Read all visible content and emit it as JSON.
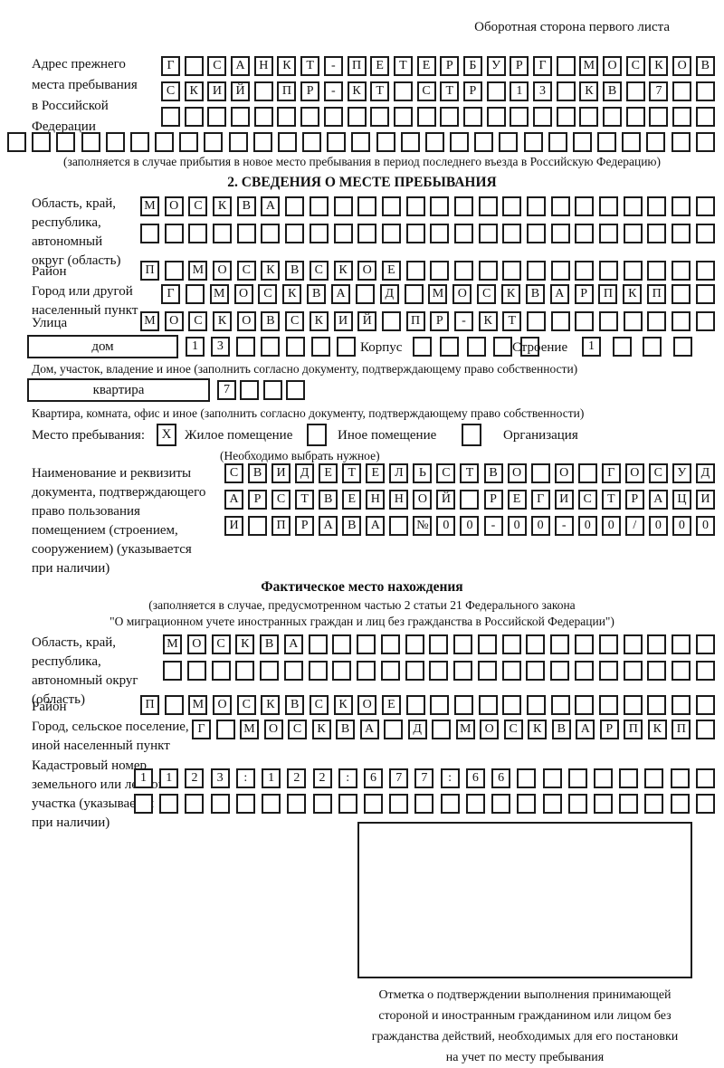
{
  "page": {
    "back_note": "Оборотная сторона первого листа"
  },
  "prev_address": {
    "label": "Адрес прежнего\nместа пребывания\nв Российской\nФедерации",
    "row1": {
      "count": 24,
      "chars": "Г САНКТ-ПЕТЕРБУРГ МОСКОВ"
    },
    "row2": {
      "count": 24,
      "chars": "СКИЙ ПР-КТ СТР 13 КВ 7"
    },
    "row3": {
      "count": 24,
      "chars": ""
    },
    "row4": {
      "count": 29,
      "chars": ""
    },
    "caption": "(заполняется в случае прибытия в новое место пребывания в период последнего въезда в Российскую Федерацию)"
  },
  "section2": {
    "title": "2. СВЕДЕНИЯ О МЕСТЕ ПРЕБЫВАНИЯ",
    "oblast": {
      "label": "Область, край,\nреспублика,\nавтономный\nокруг (область)",
      "row1": {
        "count": 24,
        "chars": "МОСКВА"
      },
      "row2": {
        "count": 24,
        "chars": ""
      }
    },
    "rayon": {
      "label": "Район",
      "row": {
        "count": 24,
        "chars": "П МОСКВСКОЕ"
      }
    },
    "gorod": {
      "label": "Город или другой\nнаселенный пункт",
      "row": {
        "count": 23,
        "chars": "Г МОСКВА Д МОСКВАРПКП"
      }
    },
    "ulitsa": {
      "label": "Улица",
      "row": {
        "count": 24,
        "chars": "МОСКОВСКИЙ ПР-КТ"
      }
    },
    "dom": {
      "box_label": "дом",
      "cells": {
        "count": 7,
        "chars": "13"
      },
      "korpus_label": "Корпус",
      "korpus_cells": {
        "count": 5,
        "chars": ""
      },
      "stroenie_label": "Строение",
      "stroenie_cells": {
        "count": 4,
        "chars": "1"
      },
      "caption": "Дом, участок, владение и иное (заполнить согласно документу, подтверждающему право собственности)"
    },
    "kvartira": {
      "box_label": "квартира",
      "cells": {
        "count": 4,
        "chars": "7"
      },
      "caption": "Квартира, комната, офис и иное (заполнить согласно документу, подтверждающему право собственности)"
    },
    "mesto": {
      "label": "Место пребывания:",
      "zhiloe_mark": "X",
      "zhiloe_label": "Жилое помещение",
      "inoe_mark": "",
      "inoe_label": "Иное помещение",
      "org_mark": "",
      "org_label": "Организация",
      "hint": "(Необходимо выбрать нужное)"
    },
    "doc": {
      "label": "Наименование и реквизиты\nдокумента, подтверждающего\nправо пользования\nпомещением (строением,\nсооружением) (указывается\nпри наличии)",
      "row1": {
        "count": 21,
        "chars": "СВИДЕТЕЛЬСТВО О ГОСУД"
      },
      "row2": {
        "count": 21,
        "chars": "АРСТВЕННОЙ РЕГИСТРАЦИ"
      },
      "row3": {
        "count": 21,
        "chars": "И ПРАВА №00-00-00/000"
      }
    }
  },
  "fakt": {
    "title": "Фактическое место нахождения",
    "caption1": "(заполняется в случае, предусмотренном частью 2 статьи 21 Федерального закона",
    "caption2": "\"О миграционном учете иностранных граждан и лиц без гражданства в Российской Федерации\")",
    "oblast": {
      "label": "Область, край,\nреспублика,\nавтономный округ\n(область)",
      "row1": {
        "count": 23,
        "chars": "МОСКВА"
      },
      "row2": {
        "count": 23,
        "chars": ""
      }
    },
    "rayon": {
      "label": "Район",
      "row": {
        "count": 24,
        "chars": "П МОСКВСКОЕ"
      }
    },
    "gorod": {
      "label": "Город, сельское поселение,\nиной населенный пункт",
      "row": {
        "count": 22,
        "chars": "Г МОСКВА Д МОСКВАРПКП"
      }
    },
    "kadastr": {
      "label": "Кадастровый номер\nземельного или лесного\nучастка (указывается\nпри наличии)",
      "row1": {
        "count": 23,
        "chars": "1123:122:677:66"
      },
      "row2": {
        "count": 23,
        "chars": ""
      }
    },
    "stamp_caption": "Отметка о подтверждении выполнения принимающей\nстороной и иностранным гражданином или лицом без\nгражданства действий, необходимых для его постановки\nна учет по месту пребывания"
  }
}
